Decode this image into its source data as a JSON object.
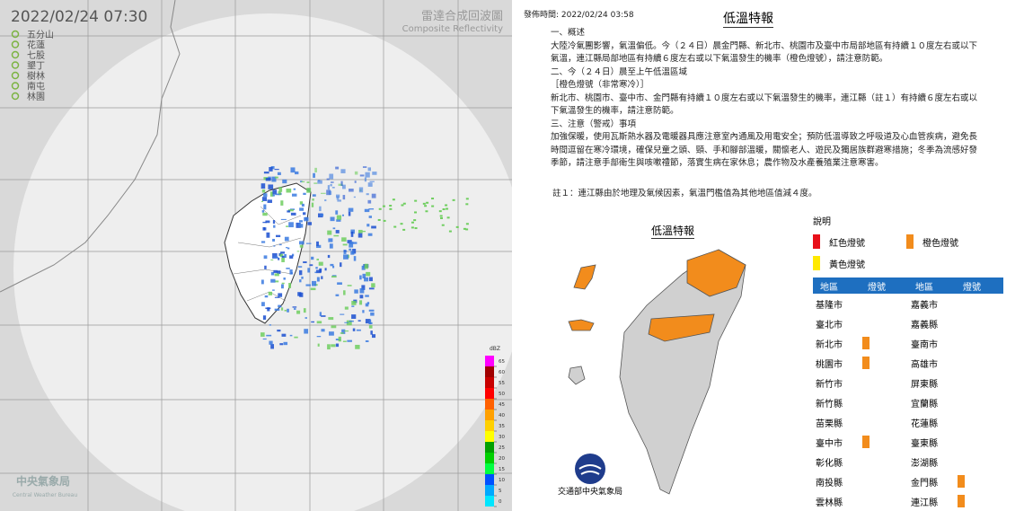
{
  "radar": {
    "timestamp": "2022/02/24  07:30",
    "title": "雷達合成回波圖",
    "subtitle": "Composite Reflectivity",
    "stations": [
      "五分山",
      "花蓮",
      "七股",
      "墾丁",
      "樹林",
      "南屯",
      "林園"
    ],
    "colorbar": {
      "unit": "dBZ",
      "ticks": [
        0,
        5,
        10,
        15,
        20,
        25,
        30,
        35,
        40,
        45,
        50,
        55,
        60,
        65
      ],
      "colors": [
        "#00e6ff",
        "#00a8ff",
        "#0050ff",
        "#00ff40",
        "#00d000",
        "#00a000",
        "#ffff00",
        "#ffd000",
        "#ffa000",
        "#ff6000",
        "#ff0000",
        "#c80000",
        "#a00000",
        "#ff00ff"
      ]
    },
    "agency": "中央氣象局",
    "agency_en": "Central Weather Bureau"
  },
  "bulletin": {
    "issued": "發佈時間: 2022/02/24 03:58",
    "title": "低溫特報",
    "sections": [
      "一、概述",
      "大陸冷氣團影響，氣溫偏低。今（２４日）晨金門縣、新北市、桃園市及臺中市局部地區有持續１０度左右或以下氣溫，連江縣局部地區有持續６度左右或以下氣溫發生的機率（橙色燈號），請注意防範。",
      "二、今（２４日）晨至上午低溫區域",
      "［橙色燈號（非常寒冷）］",
      "新北市、桃園市、臺中市、金門縣有持續１０度左右或以下氣溫發生的機率，連江縣（註１）有持續６度左右或以下氣溫發生的機率，請注意防範。",
      "三、注意（警戒）事項",
      "加強保暖，使用瓦斯熱水器及電暖器具應注意室內通風及用電安全；預防低溫導致之呼吸道及心血管疾病，避免長時間逗留在寒冷環境，確保兒童之頭、頸、手和腳部溫暖，關懷老人、遊民及獨居族群避寒措施；冬季為流感好發季節，請注意手部衛生與咳嗽禮節，落實生病在家休息；農作物及水產養殖業注意寒害。"
    ],
    "note": "註１：連江縣由於地理及氣候因素，氣溫門檻值為其他地區值減４度。"
  },
  "map": {
    "title": "低溫特報",
    "agency": "交通部中央氣象局"
  },
  "legend": {
    "title": "說明",
    "items": [
      {
        "label": "紅色燈號",
        "color": "#e8101a"
      },
      {
        "label": "橙色燈號",
        "color": "#f28c1c"
      },
      {
        "label": "黃色燈號",
        "color": "#ffe900"
      }
    ],
    "headers": [
      "地區",
      "燈號"
    ],
    "columns": [
      [
        {
          "name": "基隆市",
          "signal": null
        },
        {
          "name": "臺北市",
          "signal": null
        },
        {
          "name": "新北市",
          "signal": "#f28c1c"
        },
        {
          "name": "桃園市",
          "signal": "#f28c1c"
        },
        {
          "name": "新竹市",
          "signal": null
        },
        {
          "name": "新竹縣",
          "signal": null
        },
        {
          "name": "苗栗縣",
          "signal": null
        },
        {
          "name": "臺中市",
          "signal": "#f28c1c"
        },
        {
          "name": "彰化縣",
          "signal": null
        },
        {
          "name": "南投縣",
          "signal": null
        },
        {
          "name": "雲林縣",
          "signal": null
        }
      ],
      [
        {
          "name": "嘉義市",
          "signal": null
        },
        {
          "name": "嘉義縣",
          "signal": null
        },
        {
          "name": "臺南市",
          "signal": null
        },
        {
          "name": "高雄市",
          "signal": null
        },
        {
          "name": "屏東縣",
          "signal": null
        },
        {
          "name": "宜蘭縣",
          "signal": null
        },
        {
          "name": "花蓮縣",
          "signal": null
        },
        {
          "name": "臺東縣",
          "signal": null
        },
        {
          "name": "澎湖縣",
          "signal": null
        },
        {
          "name": "金門縣",
          "signal": "#f28c1c"
        },
        {
          "name": "連江縣",
          "signal": "#f28c1c"
        }
      ]
    ]
  }
}
